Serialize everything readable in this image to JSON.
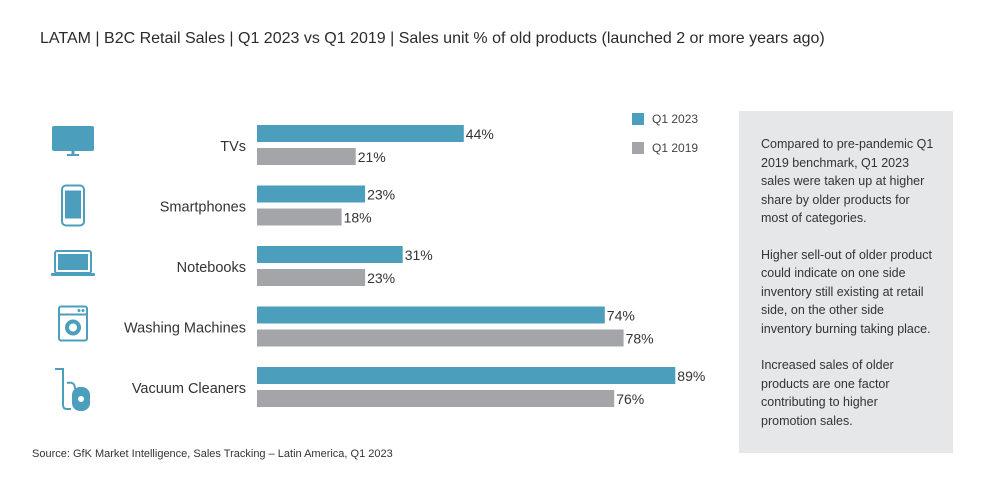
{
  "header": {
    "title": "LATAM | B2C Retail Sales | Q1 2023 vs Q1 2019 | Sales unit % of old products (launched 2 or more years ago)"
  },
  "chart_data": {
    "type": "bar",
    "orientation": "horizontal",
    "title": "LATAM | B2C Retail Sales | Q1 2023 vs Q1 2019 | Sales unit % of old products (launched 2 or more years ago)",
    "categories": [
      "TVs",
      "Smartphones",
      "Notebooks",
      "Washing Machines",
      "Vacuum Cleaners"
    ],
    "category_icons": [
      "tv-icon",
      "smartphone-icon",
      "notebook-icon",
      "washing-machine-icon",
      "vacuum-cleaner-icon"
    ],
    "series": [
      {
        "name": "Q1 2023",
        "values": [
          44,
          23,
          31,
          74,
          89
        ],
        "labels": [
          "44%",
          "23%",
          "31%",
          "74%",
          "89%"
        ],
        "color": "#4c9fbc"
      },
      {
        "name": "Q1 2019",
        "values": [
          21,
          18,
          23,
          78,
          76
        ],
        "labels": [
          "21%",
          "18%",
          "23%",
          "78%",
          "76%"
        ],
        "color": "#a3a5a8"
      }
    ],
    "xlim": [
      0,
      100
    ],
    "unit": "%",
    "legend": "top-right",
    "icon_color": "#4c9fbc"
  },
  "notes": [
    "Compared to pre-pandemic Q1 2019 benchmark, Q1 2023 sales were taken up at higher share by older products for most of categories.",
    "Higher sell-out of older product could indicate on one side inventory still existing at retail side, on the other side inventory burning taking place.",
    "Increased sales of older products are one factor contributing to higher promotion sales."
  ],
  "footer": {
    "source": "Source: GfK Market Intelligence, Sales Tracking – Latin America, Q1 2023"
  }
}
